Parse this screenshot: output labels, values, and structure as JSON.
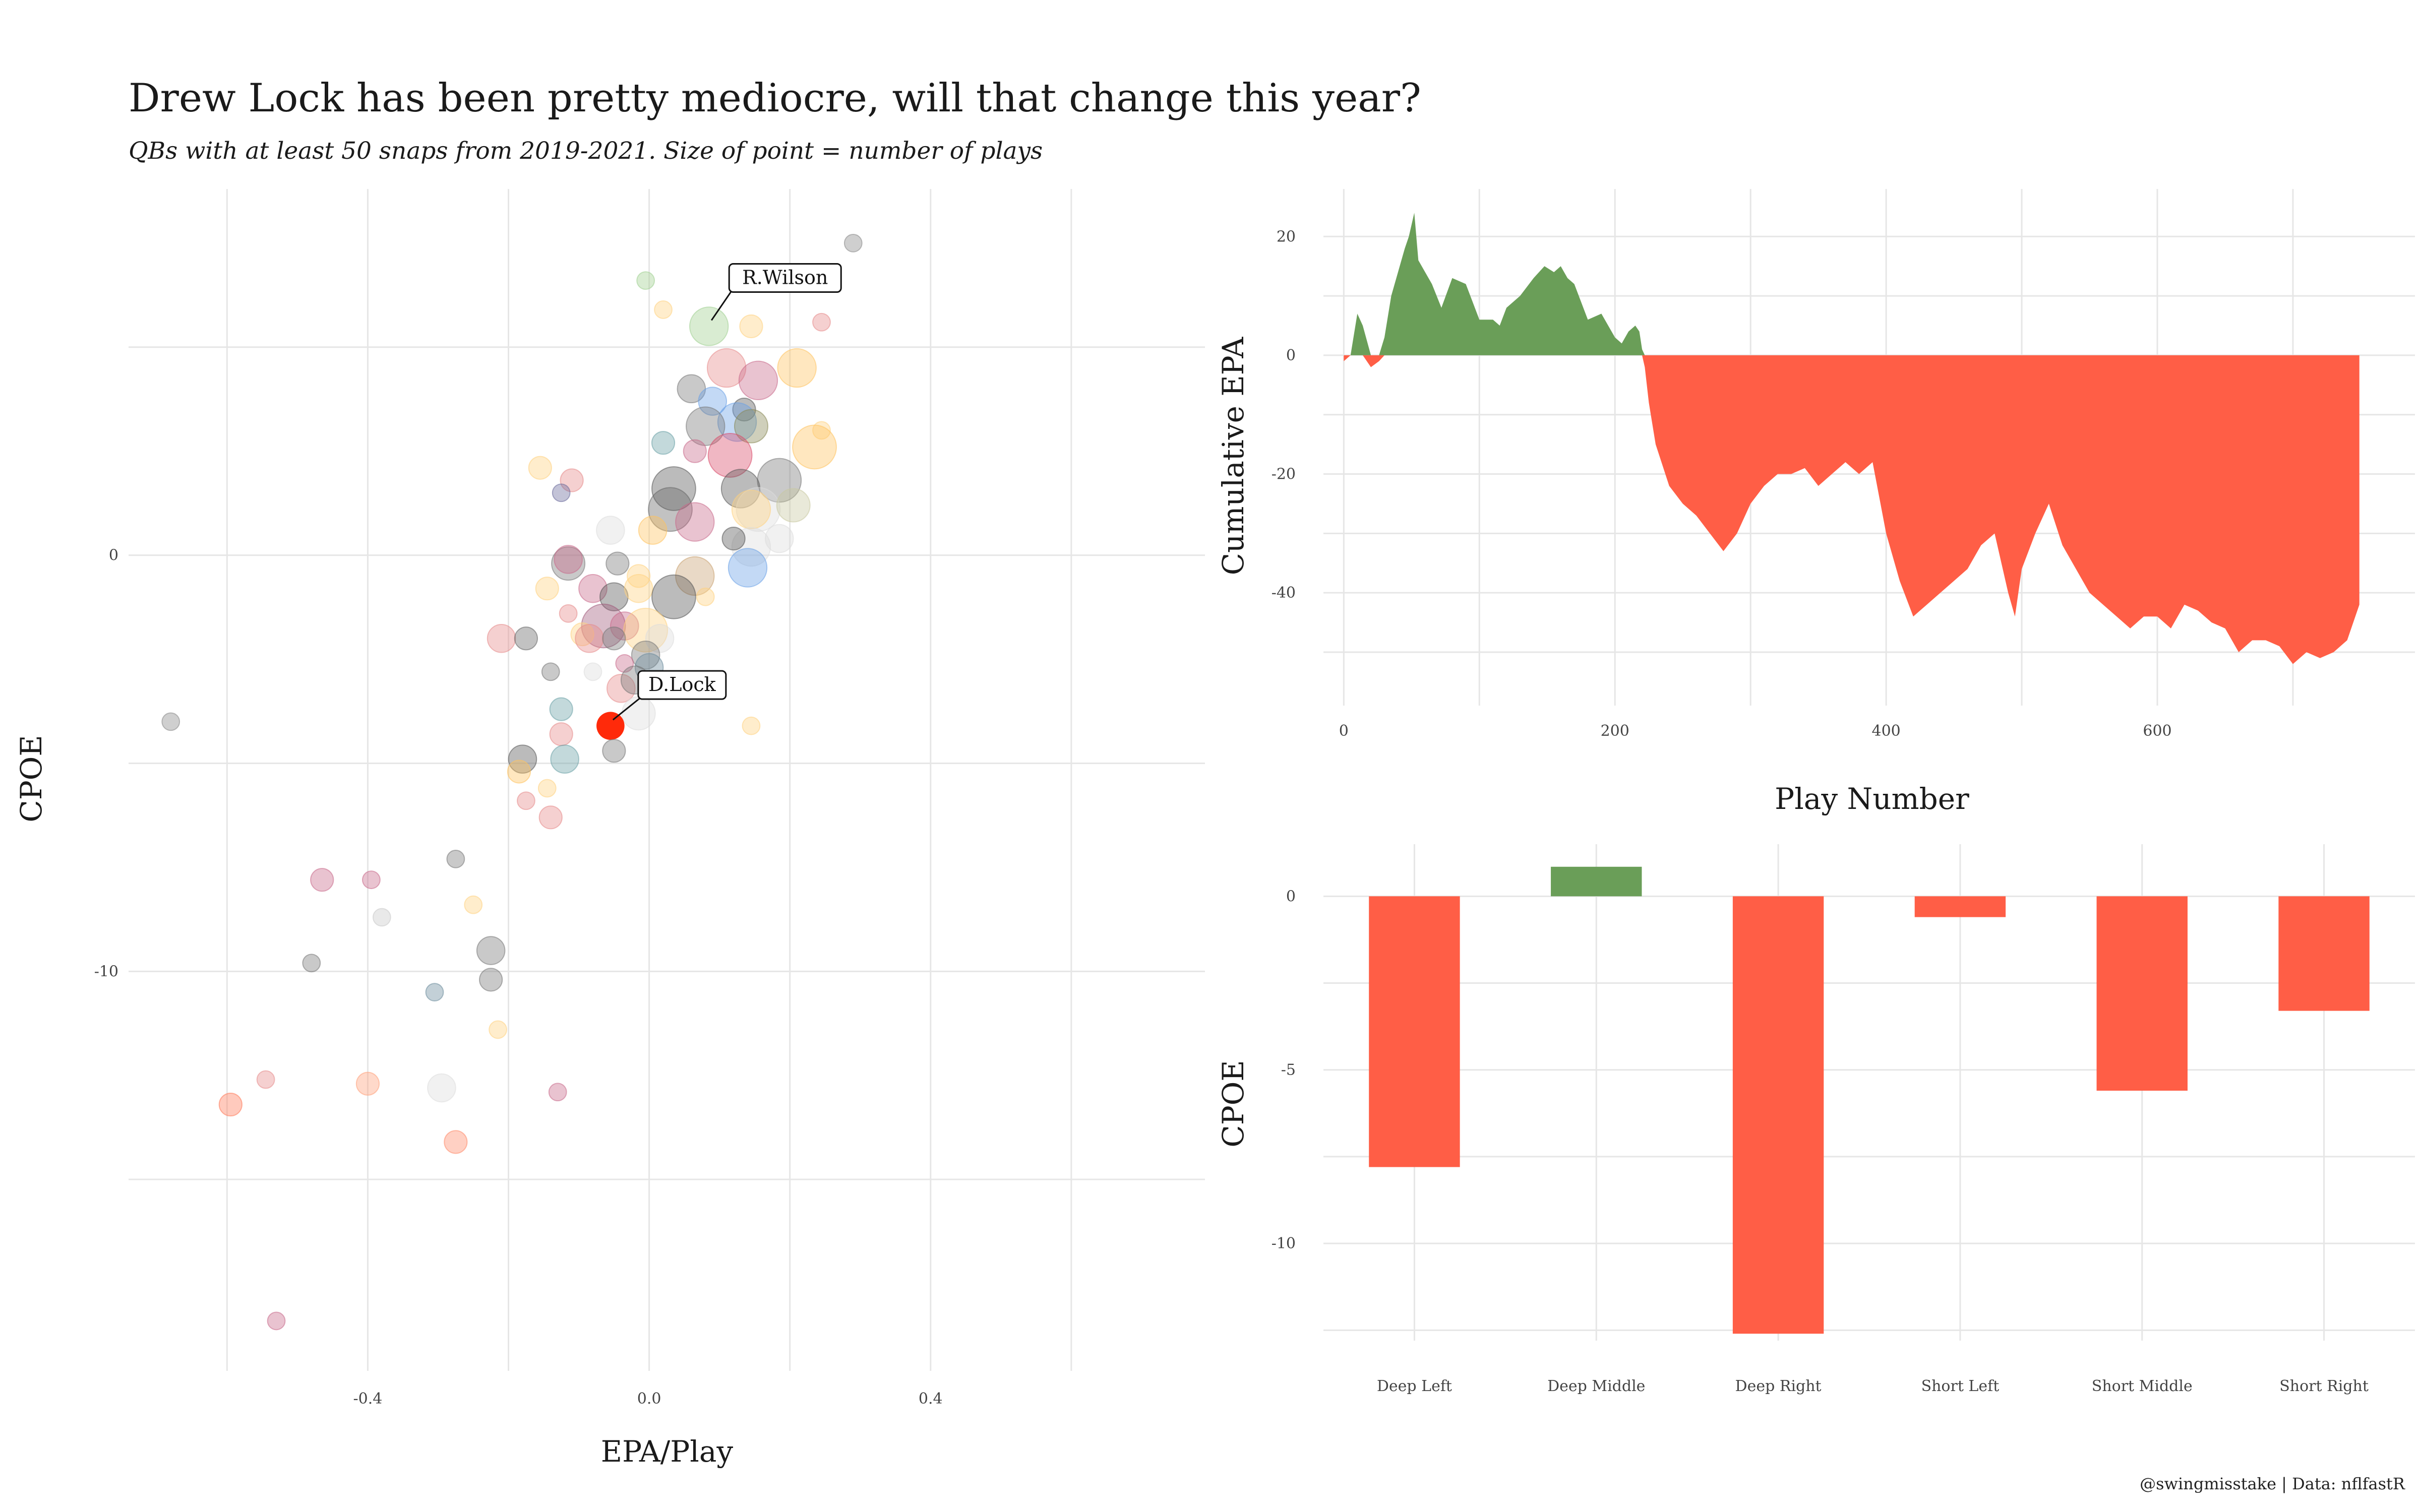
{
  "title": "Drew Lock has been pretty mediocre, will that change this year?",
  "subtitle": "QBs with at least 50 snaps from 2019-2021. Size of point = number of plays",
  "caption": "@swingmisstake | Data: nflfastR",
  "colors": {
    "positive": "#6a9e58",
    "negative": "#ff5e46",
    "highlight": "#ff2a0a",
    "grid": "#e6e6e6"
  },
  "chart_data": [
    {
      "type": "scatter",
      "xlabel": "EPA/Play",
      "ylabel": "CPOE",
      "xlim": [
        -0.74,
        0.79
      ],
      "ylim": [
        -19.6,
        8.8
      ],
      "xticks": [
        -0.4,
        0.0,
        0.4
      ],
      "xtick_labels": [
        "-0.4",
        "0.0",
        "0.4"
      ],
      "yticks": [
        0,
        -10
      ],
      "ytick_labels": [
        "0",
        "-10"
      ],
      "grid": true,
      "legend": "none",
      "annotations": [
        {
          "label": "R.Wilson",
          "x": 0.085,
          "y": 5.5
        },
        {
          "label": "D.Lock",
          "x": -0.055,
          "y": -4.1
        }
      ],
      "points": [
        {
          "x": 0.29,
          "y": 7.5,
          "size": 2,
          "color": "#888888"
        },
        {
          "x": -0.005,
          "y": 6.6,
          "size": 2,
          "color": "#9fd08f"
        },
        {
          "x": 0.02,
          "y": 5.9,
          "size": 2,
          "color": "#ffd27f"
        },
        {
          "x": 0.085,
          "y": 5.5,
          "size": 6,
          "color": "#9fd08f"
        },
        {
          "x": 0.145,
          "y": 5.5,
          "size": 3,
          "color": "#ffd27f"
        },
        {
          "x": 0.245,
          "y": 5.6,
          "size": 2,
          "color": "#e58a8a"
        },
        {
          "x": 0.21,
          "y": 4.5,
          "size": 6,
          "color": "#ffc25f"
        },
        {
          "x": 0.11,
          "y": 4.5,
          "size": 6,
          "color": "#e58a8a"
        },
        {
          "x": 0.155,
          "y": 4.2,
          "size": 6,
          "color": "#c96a8a"
        },
        {
          "x": 0.06,
          "y": 4.0,
          "size": 4,
          "color": "#777777"
        },
        {
          "x": 0.09,
          "y": 3.7,
          "size": 4,
          "color": "#6aa0e6"
        },
        {
          "x": 0.135,
          "y": 3.5,
          "size": 3,
          "color": "#555555"
        },
        {
          "x": 0.125,
          "y": 3.2,
          "size": 6,
          "color": "#6aa0e6"
        },
        {
          "x": 0.08,
          "y": 3.1,
          "size": 6,
          "color": "#777777"
        },
        {
          "x": 0.145,
          "y": 3.1,
          "size": 5,
          "color": "#888855"
        },
        {
          "x": 0.245,
          "y": 3.0,
          "size": 2,
          "color": "#ffd27f"
        },
        {
          "x": 0.02,
          "y": 2.7,
          "size": 3,
          "color": "#6aa0a6"
        },
        {
          "x": 0.065,
          "y": 2.5,
          "size": 3,
          "color": "#c96a8a"
        },
        {
          "x": 0.235,
          "y": 2.6,
          "size": 7,
          "color": "#ffc25f"
        },
        {
          "x": 0.115,
          "y": 2.4,
          "size": 7,
          "color": "#d94a6a"
        },
        {
          "x": -0.155,
          "y": 2.1,
          "size": 3,
          "color": "#ffd27f"
        },
        {
          "x": -0.11,
          "y": 1.8,
          "size": 3,
          "color": "#e58a8a"
        },
        {
          "x": -0.125,
          "y": 1.5,
          "size": 2,
          "color": "#6a6a9a"
        },
        {
          "x": 0.185,
          "y": 1.8,
          "size": 7,
          "color": "#777777"
        },
        {
          "x": 0.035,
          "y": 1.6,
          "size": 7,
          "color": "#555555"
        },
        {
          "x": 0.13,
          "y": 1.6,
          "size": 6,
          "color": "#555555"
        },
        {
          "x": 0.03,
          "y": 1.1,
          "size": 7,
          "color": "#666666"
        },
        {
          "x": 0.155,
          "y": 1.1,
          "size": 7,
          "color": "#dddddd"
        },
        {
          "x": 0.145,
          "y": 1.1,
          "size": 6,
          "color": "#ffd27f"
        },
        {
          "x": 0.205,
          "y": 1.2,
          "size": 5,
          "color": "#c9c9a0"
        },
        {
          "x": -0.055,
          "y": 0.6,
          "size": 4,
          "color": "#dddddd"
        },
        {
          "x": 0.005,
          "y": 0.6,
          "size": 4,
          "color": "#ffc25f"
        },
        {
          "x": 0.065,
          "y": 0.8,
          "size": 6,
          "color": "#c96a8a"
        },
        {
          "x": 0.145,
          "y": 0.2,
          "size": 6,
          "color": "#dddddd"
        },
        {
          "x": 0.185,
          "y": 0.4,
          "size": 4,
          "color": "#dddddd"
        },
        {
          "x": 0.12,
          "y": 0.4,
          "size": 3,
          "color": "#555555"
        },
        {
          "x": -0.115,
          "y": -0.2,
          "size": 5,
          "color": "#777777"
        },
        {
          "x": -0.115,
          "y": -0.1,
          "size": 4,
          "color": "#c96a8a"
        },
        {
          "x": -0.045,
          "y": -0.2,
          "size": 3,
          "color": "#777777"
        },
        {
          "x": 0.14,
          "y": -0.3,
          "size": 6,
          "color": "#6aa0e6"
        },
        {
          "x": -0.015,
          "y": -0.5,
          "size": 3,
          "color": "#ffd27f"
        },
        {
          "x": 0.065,
          "y": -0.5,
          "size": 6,
          "color": "#c9a070"
        },
        {
          "x": -0.145,
          "y": -0.8,
          "size": 3,
          "color": "#ffd27f"
        },
        {
          "x": -0.08,
          "y": -0.8,
          "size": 4,
          "color": "#c96a8a"
        },
        {
          "x": -0.05,
          "y": -1.0,
          "size": 4,
          "color": "#555555"
        },
        {
          "x": -0.015,
          "y": -0.8,
          "size": 4,
          "color": "#ffd27f"
        },
        {
          "x": 0.035,
          "y": -1.0,
          "size": 7,
          "color": "#555555"
        },
        {
          "x": 0.08,
          "y": -1.0,
          "size": 2,
          "color": "#ffd27f"
        },
        {
          "x": -0.115,
          "y": -1.4,
          "size": 2,
          "color": "#e58a8a"
        },
        {
          "x": -0.065,
          "y": -1.7,
          "size": 7,
          "color": "#a05a7a"
        },
        {
          "x": -0.035,
          "y": -1.7,
          "size": 4,
          "color": "#c96a8a"
        },
        {
          "x": -0.005,
          "y": -1.8,
          "size": 7,
          "color": "#ffd27f"
        },
        {
          "x": -0.095,
          "y": -1.9,
          "size": 3,
          "color": "#ffd27f"
        },
        {
          "x": -0.085,
          "y": -2.0,
          "size": 4,
          "color": "#e58a8a"
        },
        {
          "x": -0.21,
          "y": -2.0,
          "size": 4,
          "color": "#e58a8a"
        },
        {
          "x": -0.175,
          "y": -2.0,
          "size": 3,
          "color": "#666666"
        },
        {
          "x": -0.05,
          "y": -2.0,
          "size": 3,
          "color": "#777777"
        },
        {
          "x": 0.015,
          "y": -2.0,
          "size": 4,
          "color": "#dddddd"
        },
        {
          "x": -0.005,
          "y": -2.4,
          "size": 4,
          "color": "#777777"
        },
        {
          "x": 0.0,
          "y": -2.7,
          "size": 4,
          "color": "#6a8a9a"
        },
        {
          "x": -0.035,
          "y": -2.6,
          "size": 2,
          "color": "#c96a8a"
        },
        {
          "x": -0.14,
          "y": -2.8,
          "size": 2,
          "color": "#777777"
        },
        {
          "x": -0.08,
          "y": -2.8,
          "size": 2,
          "color": "#dddddd"
        },
        {
          "x": -0.04,
          "y": -3.2,
          "size": 4,
          "color": "#e58a8a"
        },
        {
          "x": -0.02,
          "y": -3.0,
          "size": 4,
          "color": "#777777"
        },
        {
          "x": -0.125,
          "y": -3.7,
          "size": 3,
          "color": "#6aa0a6"
        },
        {
          "x": -0.015,
          "y": -3.8,
          "size": 5,
          "color": "#dddddd"
        },
        {
          "x": -0.125,
          "y": -4.3,
          "size": 3,
          "color": "#e58a8a"
        },
        {
          "x": -0.055,
          "y": -4.1,
          "size": 4,
          "color": "#ff2a0a",
          "highlight": true
        },
        {
          "x": 0.145,
          "y": -4.1,
          "size": 2,
          "color": "#ffd27f"
        },
        {
          "x": -0.05,
          "y": -4.7,
          "size": 3,
          "color": "#777777"
        },
        {
          "x": -0.18,
          "y": -4.9,
          "size": 4,
          "color": "#555555"
        },
        {
          "x": -0.185,
          "y": -5.2,
          "size": 3,
          "color": "#ffc25f"
        },
        {
          "x": -0.12,
          "y": -4.9,
          "size": 4,
          "color": "#6aa0a6"
        },
        {
          "x": -0.68,
          "y": -4.0,
          "size": 2,
          "color": "#888888"
        },
        {
          "x": -0.145,
          "y": -5.6,
          "size": 2,
          "color": "#ffd27f"
        },
        {
          "x": -0.175,
          "y": -5.9,
          "size": 2,
          "color": "#e58a8a"
        },
        {
          "x": -0.14,
          "y": -6.3,
          "size": 3,
          "color": "#e58a8a"
        },
        {
          "x": -0.275,
          "y": -7.3,
          "size": 2,
          "color": "#777777"
        },
        {
          "x": -0.465,
          "y": -7.8,
          "size": 3,
          "color": "#c96a8a"
        },
        {
          "x": -0.395,
          "y": -7.8,
          "size": 2,
          "color": "#c96a8a"
        },
        {
          "x": -0.25,
          "y": -8.4,
          "size": 2,
          "color": "#ffd27f"
        },
        {
          "x": -0.38,
          "y": -8.7,
          "size": 2,
          "color": "#c9c9c9"
        },
        {
          "x": -0.225,
          "y": -9.5,
          "size": 4,
          "color": "#777777"
        },
        {
          "x": -0.48,
          "y": -9.8,
          "size": 2,
          "color": "#777777"
        },
        {
          "x": -0.305,
          "y": -10.5,
          "size": 2,
          "color": "#6a8a9a"
        },
        {
          "x": -0.225,
          "y": -10.2,
          "size": 3,
          "color": "#777777"
        },
        {
          "x": -0.215,
          "y": -11.4,
          "size": 2,
          "color": "#ffd27f"
        },
        {
          "x": -0.545,
          "y": -12.6,
          "size": 2,
          "color": "#e58a8a"
        },
        {
          "x": -0.4,
          "y": -12.7,
          "size": 3,
          "color": "#ffa07a"
        },
        {
          "x": -0.295,
          "y": -12.8,
          "size": 4,
          "color": "#dddddd"
        },
        {
          "x": -0.13,
          "y": -12.9,
          "size": 2,
          "color": "#c96a8a"
        },
        {
          "x": -0.595,
          "y": -13.2,
          "size": 3,
          "color": "#ff7a5a"
        },
        {
          "x": -0.275,
          "y": -14.1,
          "size": 3,
          "color": "#ff8a6a"
        },
        {
          "x": -0.53,
          "y": -18.4,
          "size": 2,
          "color": "#c96a8a"
        }
      ]
    },
    {
      "type": "area",
      "xlabel": "Play Number",
      "ylabel": "Cumulative EPA",
      "xlim": [
        -15,
        790
      ],
      "ylim": [
        -59,
        28
      ],
      "xticks": [
        0,
        200,
        400,
        600
      ],
      "xtick_labels": [
        "0",
        "200",
        "400",
        "600"
      ],
      "yticks": [
        20,
        0,
        -20,
        -40
      ],
      "ytick_labels": [
        "20",
        "0",
        "-20",
        "-40"
      ],
      "grid": true,
      "x": [
        0,
        5,
        10,
        14,
        20,
        26,
        30,
        35,
        40,
        45,
        48,
        52,
        55,
        60,
        65,
        72,
        80,
        90,
        100,
        110,
        115,
        120,
        130,
        140,
        148,
        155,
        160,
        165,
        170,
        180,
        190,
        200,
        205,
        210,
        215,
        218,
        220,
        222,
        225,
        230,
        240,
        250,
        260,
        270,
        280,
        290,
        300,
        310,
        320,
        330,
        340,
        350,
        360,
        370,
        380,
        390,
        400,
        410,
        420,
        430,
        440,
        450,
        460,
        470,
        480,
        490,
        495,
        500,
        510,
        520,
        530,
        540,
        550,
        560,
        570,
        580,
        590,
        600,
        610,
        620,
        630,
        640,
        650,
        660,
        670,
        680,
        690,
        700,
        710,
        720,
        730,
        740,
        749
      ],
      "y": [
        -1,
        0,
        7,
        5,
        -2,
        -1,
        3,
        10,
        14,
        18,
        20,
        24,
        16,
        14,
        12,
        8,
        13,
        12,
        6,
        6,
        5,
        8,
        10,
        13,
        15,
        14,
        15,
        13,
        12,
        6,
        7,
        3,
        2,
        4,
        5,
        4,
        1,
        -2,
        -8,
        -15,
        -22,
        -25,
        -27,
        -30,
        -33,
        -30,
        -25,
        -22,
        -20,
        -20,
        -19,
        -22,
        -20,
        -18,
        -20,
        -18,
        -30,
        -38,
        -44,
        -42,
        -40,
        -38,
        -36,
        -32,
        -30,
        -40,
        -44,
        -36,
        -30,
        -25,
        -32,
        -36,
        -40,
        -42,
        -44,
        -46,
        -44,
        -44,
        -46,
        -42,
        -43,
        -45,
        -46,
        -50,
        -48,
        -48,
        -49,
        -52,
        -50,
        -51,
        -50,
        -48,
        -42
      ]
    },
    {
      "type": "bar",
      "xlabel": "",
      "ylabel": "CPOE",
      "ylim": [
        -12.6,
        1.5
      ],
      "yticks": [
        0,
        -5,
        -10
      ],
      "ytick_labels": [
        "0",
        "-5",
        "-10"
      ],
      "grid": true,
      "categories": [
        "Deep Left",
        "Deep Middle",
        "Deep Right",
        "Short Left",
        "Short Middle",
        "Short Right"
      ],
      "values": [
        -7.8,
        0.85,
        -12.6,
        -0.6,
        -5.6,
        -3.3
      ]
    }
  ]
}
